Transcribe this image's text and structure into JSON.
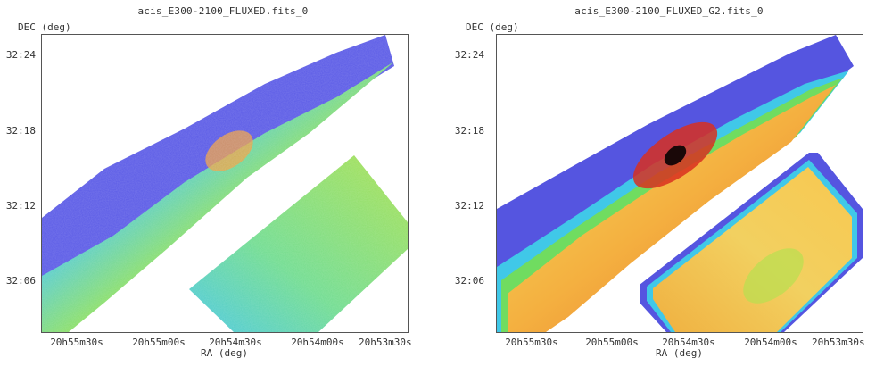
{
  "left": {
    "title": "acis_E300-2100_FLUXED.fits_0",
    "ylabel": "DEC (deg)",
    "xlabel": "RA (deg)",
    "yticks": [
      "32:24",
      "32:18",
      "32:12",
      "32:06"
    ],
    "xticks": [
      "20h55m30s",
      "20h55m00s",
      "20h54m30s",
      "20h54m00s",
      "20h53m30s"
    ]
  },
  "right": {
    "title": "acis_E300-2100_FLUXED_G2.fits_0",
    "ylabel": "DEC (deg)",
    "xlabel": "RA (deg)",
    "yticks": [
      "32:24",
      "32:18",
      "32:12",
      "32:06"
    ],
    "xticks": [
      "20h55m30s",
      "20h55m00s",
      "20h54m30s",
      "20h54m00s",
      "20h53m30s"
    ]
  },
  "colors": {
    "low": "#4a4ad8",
    "mid": "#46d8d0",
    "green": "#7fe05a",
    "yellow": "#f1f05a",
    "orange": "#f29a2e",
    "high": "#d8261a",
    "peak": "#1a0a0a"
  }
}
